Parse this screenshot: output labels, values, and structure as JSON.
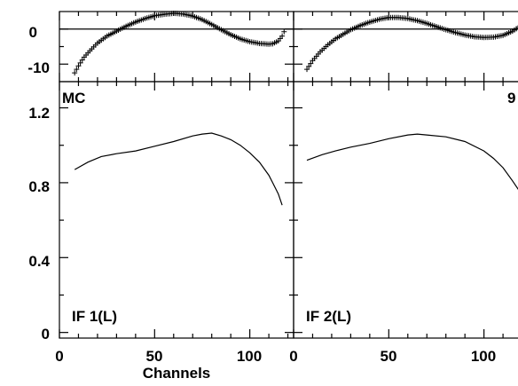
{
  "chart_data": {
    "type": "line",
    "xlabel": "Channels",
    "x_ticks": [
      0,
      50,
      100
    ],
    "x_range": [
      0,
      123
    ],
    "residual_y_ticks": [
      0,
      -10
    ],
    "residual_y_range": [
      -15,
      5
    ],
    "main_y_ticks": [
      1.2,
      0.8,
      0.4,
      0.0
    ],
    "main_y_range": [
      -0.03,
      1.34
    ],
    "tag_left": "MC",
    "tag_right": "9",
    "panels": [
      {
        "name": "IF 1(L)",
        "residual": {
          "x": [
            8,
            10,
            13,
            16,
            20,
            25,
            30,
            35,
            40,
            45,
            50,
            55,
            60,
            65,
            70,
            75,
            80,
            85,
            90,
            95,
            100,
            105,
            110,
            112,
            115,
            117,
            119
          ],
          "y": [
            -12.5,
            -10.5,
            -8,
            -6.2,
            -4,
            -2,
            -0.6,
            0.8,
            2,
            3,
            3.8,
            4.2,
            4.5,
            4.3,
            3.7,
            2.7,
            1.3,
            -0.2,
            -1.6,
            -2.8,
            -3.6,
            -4.1,
            -4.3,
            -4.2,
            -3.4,
            -2,
            0.5
          ]
        },
        "fit": {
          "x": [
            8,
            15,
            22,
            30,
            40,
            50,
            60,
            70,
            75,
            80,
            85,
            90,
            95,
            100,
            105,
            110,
            112,
            115,
            117
          ],
          "y": [
            0.87,
            0.91,
            0.94,
            0.955,
            0.97,
            0.995,
            1.02,
            1.05,
            1.06,
            1.065,
            1.05,
            1.03,
            1.0,
            0.96,
            0.91,
            0.84,
            0.8,
            0.74,
            0.68
          ]
        }
      },
      {
        "name": "IF 2(L)",
        "residual": {
          "x": [
            7,
            10,
            14,
            18,
            22,
            26,
            30,
            35,
            40,
            45,
            50,
            55,
            60,
            65,
            70,
            75,
            80,
            85,
            90,
            95,
            100,
            105,
            110,
            115,
            119,
            123
          ],
          "y": [
            -11.5,
            -9,
            -6.5,
            -4.5,
            -2.8,
            -1.5,
            -0.2,
            1,
            2,
            2.8,
            3.3,
            3.3,
            3,
            2.4,
            1.6,
            0.7,
            -0.2,
            -1,
            -1.7,
            -2.2,
            -2.4,
            -2.3,
            -1.8,
            -0.6,
            0.8,
            2.8
          ]
        },
        "fit": {
          "x": [
            7,
            15,
            22,
            30,
            40,
            50,
            60,
            65,
            70,
            80,
            90,
            100,
            105,
            110,
            115,
            119,
            123
          ],
          "y": [
            0.92,
            0.95,
            0.97,
            0.99,
            1.01,
            1.035,
            1.055,
            1.06,
            1.055,
            1.045,
            1.02,
            0.97,
            0.93,
            0.88,
            0.81,
            0.75,
            0.67
          ]
        }
      }
    ]
  }
}
